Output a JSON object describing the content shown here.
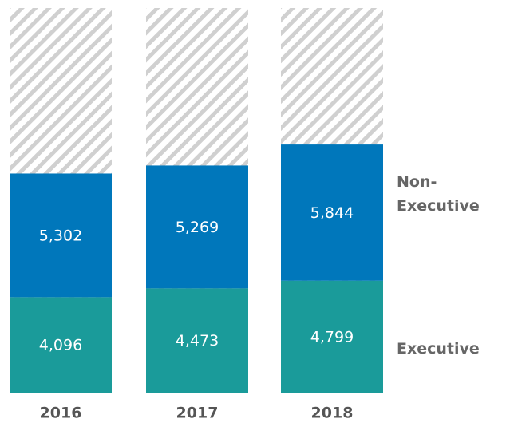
{
  "chart_data": {
    "type": "stacked-bar",
    "categories": [
      "2016",
      "2017",
      "2018"
    ],
    "series": [
      {
        "name": "Executive",
        "color": "#1a9b9a",
        "values": [
          4096,
          4473,
          4799
        ],
        "value_labels": [
          "4,096",
          "4,473",
          "4,799"
        ]
      },
      {
        "name": "Non-Executive",
        "color": "#0077bb",
        "values": [
          5302,
          5269,
          5844
        ],
        "value_labels": [
          "5,302",
          "5,269",
          "5,844"
        ]
      }
    ],
    "ylim": [
      0,
      16500
    ]
  }
}
